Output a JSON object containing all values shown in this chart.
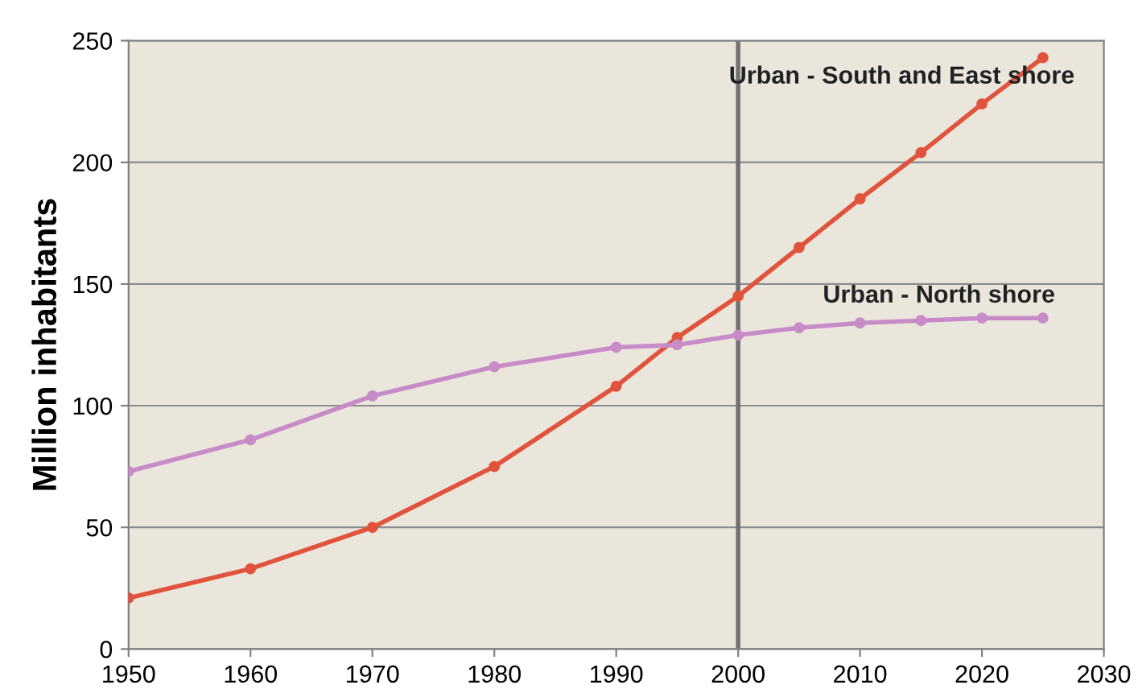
{
  "chart_data": {
    "type": "line",
    "ylabel": "Million inhabitants",
    "x": [
      1950,
      1960,
      1970,
      1980,
      1990,
      1995,
      2000,
      2005,
      2010,
      2015,
      2020,
      2025
    ],
    "series": [
      {
        "name": "Urban - South and East shore",
        "color": "#e0533c",
        "values": [
          21,
          33,
          50,
          75,
          108,
          128,
          145,
          165,
          185,
          204,
          224,
          243
        ]
      },
      {
        "name": "Urban - North shore",
        "color": "#c78cc8",
        "values": [
          73,
          86,
          104,
          116,
          124,
          125,
          129,
          132,
          134,
          135,
          136,
          136
        ]
      }
    ],
    "xlim": [
      1950,
      2030
    ],
    "xticks": [
      1950,
      1960,
      1970,
      1980,
      1990,
      2000,
      2010,
      2020,
      2030
    ],
    "ylim": [
      0,
      250
    ],
    "yticks": [
      0,
      50,
      100,
      150,
      200,
      250
    ],
    "ref_lines": [
      {
        "axis": "x",
        "value": 2000,
        "color": "#707070"
      }
    ],
    "grid": "y",
    "marker": "circle",
    "line_style": "solid",
    "legend": false
  }
}
